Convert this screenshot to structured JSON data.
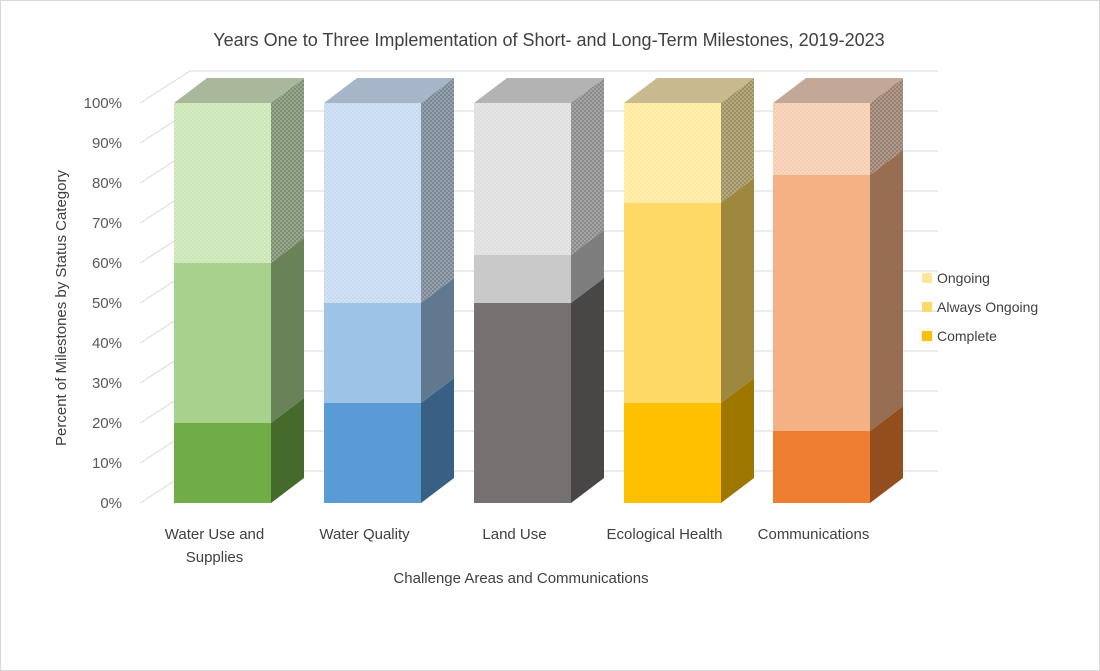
{
  "chart_data": {
    "type": "bar",
    "stacked": true,
    "three_d": true,
    "title": "Years One to Three Implementation of Short- and Long-Term Milestones, 2019-2023",
    "xlabel": "Challenge Areas and Communications",
    "ylabel": "Percent of Milestones by Status Category",
    "ylim": [
      0,
      100
    ],
    "yticks": [
      "0%",
      "10%",
      "20%",
      "30%",
      "40%",
      "50%",
      "60%",
      "70%",
      "80%",
      "90%",
      "100%"
    ],
    "grid": true,
    "legend_position": "right",
    "categories": [
      {
        "lines": [
          "Water Use and",
          "Supplies"
        ]
      },
      {
        "lines": [
          "Water Quality"
        ]
      },
      {
        "lines": [
          "Land Use"
        ]
      },
      {
        "lines": [
          "Ecological Health"
        ]
      },
      {
        "lines": [
          "Communications"
        ]
      }
    ],
    "series": [
      {
        "name": "Complete",
        "values": [
          20,
          25,
          50,
          25,
          18
        ]
      },
      {
        "name": "Always Ongoing",
        "values": [
          40,
          25,
          12,
          50,
          64
        ]
      },
      {
        "name": "Ongoing",
        "values": [
          40,
          50,
          38,
          25,
          18
        ]
      }
    ],
    "legend_order": [
      "Ongoing",
      "Always Ongoing",
      "Complete"
    ],
    "colors": {
      "category_palettes": [
        {
          "complete": "#70ad47",
          "always": "#a9d18e",
          "ongoing": "#c9e6b4",
          "top": "#a9b89a"
        },
        {
          "complete": "#5b9bd5",
          "always": "#9dc3e6",
          "ongoing": "#c5daf0",
          "top": "#a6b6c8"
        },
        {
          "complete": "#767171",
          "always": "#c9c9c9",
          "ongoing": "#dedede",
          "top": "#b3b3b3"
        },
        {
          "complete": "#ffc000",
          "always": "#ffd966",
          "ongoing": "#ffe99a",
          "top": "#c8ba8e"
        },
        {
          "complete": "#ed7d31",
          "always": "#f4b183",
          "ongoing": "#f7cdb0",
          "top": "#c3a897"
        }
      ],
      "legend": {
        "Ongoing": "#ffe699",
        "Always Ongoing": "#ffd966",
        "Complete": "#ffc000"
      },
      "gridline": "#d9d9d9",
      "text": "#404040"
    }
  }
}
